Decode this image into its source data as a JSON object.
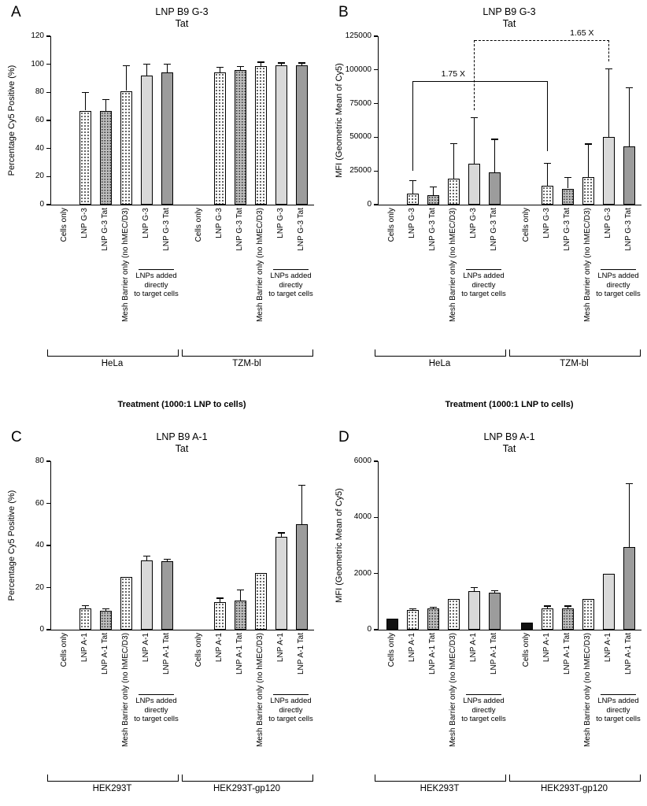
{
  "figure": {
    "description_colors": {
      "axis": "#000000",
      "bar_light_gray": "#d9d9d9",
      "bar_mid_gray": "#9c9c9c",
      "bar_black": "#111111"
    }
  },
  "chart_data": [
    {
      "panel": "A",
      "type": "bar",
      "title": "LNP B9 G-3",
      "subtitle": "Tat",
      "ylabel": "Percentage Cy5 Positive (%)",
      "xlabel": "Treatment (1000:1 LNP to cells)",
      "xlabel_visible": true,
      "ylim": [
        0,
        120
      ],
      "yticks": [
        0,
        20,
        40,
        60,
        80,
        100,
        120
      ],
      "bar_labels": [
        "Cells only",
        "LNP G-3",
        "LNP G-3 Tat",
        "Mesh Barrier only (no hMEC/D3)",
        "LNP G-3",
        "LNP G-3 Tat"
      ],
      "bar_fills": [
        "black",
        "stipple",
        "gray-stipple",
        "stipple",
        "lightgray",
        "midgray"
      ],
      "sub_bracket": {
        "label_lines": [
          "LNPs added",
          "directly",
          "to target cells"
        ],
        "bars": [
          4,
          5
        ]
      },
      "groups": [
        {
          "label": "HeLa",
          "values": [
            0.5,
            67,
            67,
            81,
            92,
            94
          ],
          "errors": [
            0,
            13,
            8,
            18,
            8,
            6
          ]
        },
        {
          "label": "TZM-bl",
          "values": [
            0.5,
            94,
            96,
            99,
            99.5,
            99.5
          ],
          "errors": [
            0,
            4,
            2.5,
            2.5,
            1.5,
            1.5
          ]
        }
      ],
      "annotations": []
    },
    {
      "panel": "B",
      "type": "bar",
      "title": "LNP B9 G-3",
      "subtitle": "Tat",
      "ylabel": "MFI (Geometric Mean of Cy5)",
      "xlabel": "Treatment (1000:1 LNP to cells)",
      "xlabel_visible": true,
      "ylim": [
        0,
        125000
      ],
      "yticks": [
        0,
        25000,
        50000,
        75000,
        100000,
        125000
      ],
      "bar_labels": [
        "Cells only",
        "LNP G-3",
        "LNP G-3 Tat",
        "Mesh Barrier only (no hMEC/D3)",
        "LNP G-3",
        "LNP G-3 Tat"
      ],
      "bar_fills": [
        "black",
        "stipple",
        "gray-stipple",
        "stipple",
        "lightgray",
        "midgray"
      ],
      "sub_bracket": {
        "label_lines": [
          "LNPs added",
          "directly",
          "to target cells"
        ],
        "bars": [
          4,
          5
        ]
      },
      "groups": [
        {
          "label": "HeLa",
          "values": [
            300,
            8000,
            7000,
            19500,
            30500,
            24000
          ],
          "errors": [
            0,
            10000,
            6000,
            26000,
            34000,
            24500
          ]
        },
        {
          "label": "TZM-bl",
          "values": [
            300,
            14000,
            12000,
            20500,
            50000,
            43500
          ],
          "errors": [
            0,
            16500,
            8000,
            24500,
            51000,
            43500
          ]
        }
      ],
      "annotations": [
        {
          "label": "1.75 X",
          "style": "solid",
          "from": {
            "group": 0,
            "bar": 1
          },
          "to": {
            "group": 1,
            "bar": 1
          },
          "level": 92000,
          "drop_from": 25000,
          "drop_to": 40000,
          "label_pos": 0.3
        },
        {
          "label": "1.65 X",
          "style": "dashed",
          "from": {
            "group": 0,
            "bar": 4
          },
          "to": {
            "group": 1,
            "bar": 4
          },
          "level": 122000,
          "drop_from": 70000,
          "drop_to": 106000,
          "label_pos": 0.8
        }
      ]
    },
    {
      "panel": "C",
      "type": "bar",
      "title": "LNP B9 A-1",
      "subtitle": "Tat",
      "ylabel": "Percentage Cy5 Positive (%)",
      "xlabel_visible": false,
      "ylim": [
        0,
        80
      ],
      "yticks": [
        0,
        20,
        40,
        60,
        80
      ],
      "bar_labels": [
        "Cells only",
        "LNP A-1",
        "LNP A-1 Tat",
        "Mesh Barrier only (no hMEC/D3)",
        "LNP A-1",
        "LNP A-1 Tat"
      ],
      "bar_fills": [
        "black",
        "stipple",
        "gray-stipple",
        "stipple",
        "lightgray",
        "midgray"
      ],
      "sub_bracket": {
        "label_lines": [
          "LNPs added",
          "directly",
          "to target cells"
        ],
        "bars": [
          4,
          5
        ]
      },
      "groups": [
        {
          "label": "HEK293T",
          "values": [
            0.3,
            10,
            9,
            25,
            33,
            32.5
          ],
          "errors": [
            0,
            1.5,
            1,
            0,
            2,
            1
          ]
        },
        {
          "label": "HEK293T-gp120",
          "values": [
            0.3,
            13,
            14,
            27,
            44,
            50
          ],
          "errors": [
            0,
            2,
            5,
            0,
            2,
            18.5
          ]
        }
      ],
      "annotations": []
    },
    {
      "panel": "D",
      "type": "bar",
      "title": "LNP B9 A-1",
      "subtitle": "Tat",
      "ylabel": "MFI (Geometric Mean of Cy5)",
      "xlabel_visible": false,
      "ylim": [
        0,
        6000
      ],
      "yticks": [
        0,
        2000,
        4000,
        6000
      ],
      "bar_labels": [
        "Cells only",
        "LNP A-1",
        "LNP A-1 Tat",
        "Mesh Barrier only (no hMEC/D3)",
        "LNP A-1",
        "LNP A-1 Tat"
      ],
      "bar_fills": [
        "black",
        "stipple",
        "gray-stipple",
        "stipple",
        "lightgray",
        "midgray"
      ],
      "sub_bracket": {
        "label_lines": [
          "LNPs added",
          "directly",
          "to target cells"
        ],
        "bars": [
          4,
          5
        ]
      },
      "groups": [
        {
          "label": "HEK293T",
          "values": [
            400,
            700,
            750,
            1100,
            1380,
            1320
          ],
          "errors": [
            0,
            40,
            40,
            0,
            130,
            60
          ]
        },
        {
          "label": "HEK293T-gp120",
          "values": [
            260,
            770,
            770,
            1100,
            2000,
            2950
          ],
          "errors": [
            0,
            70,
            70,
            0,
            0,
            2260
          ]
        }
      ],
      "annotations": []
    }
  ]
}
